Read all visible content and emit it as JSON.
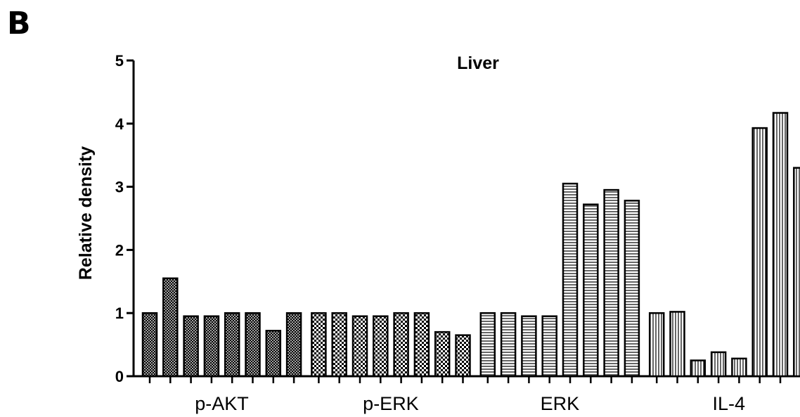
{
  "panel_label": "B",
  "chart_data": {
    "type": "bar",
    "title": "Liver",
    "xlabel": "",
    "ylabel": "Relative density",
    "ylim": [
      0,
      5
    ],
    "yticks": [
      0,
      1,
      2,
      3,
      4,
      5
    ],
    "grid": false,
    "legend": "none",
    "categories": [
      "p-AKT",
      "p-ERK",
      "ERK",
      "IL-4"
    ],
    "groups": [
      {
        "name": "p-AKT",
        "pattern": "crosshatch",
        "values": [
          1.0,
          1.55,
          0.95,
          0.95,
          1.0,
          1.0,
          0.72,
          1.0
        ]
      },
      {
        "name": "p-ERK",
        "pattern": "checker",
        "values": [
          1.0,
          1.0,
          0.95,
          0.95,
          1.0,
          1.0,
          0.7,
          0.65
        ]
      },
      {
        "name": "ERK",
        "pattern": "horizontal",
        "values": [
          1.0,
          1.0,
          0.95,
          0.95,
          3.05,
          2.72,
          2.95,
          2.78
        ]
      },
      {
        "name": "IL-4",
        "pattern": "vertical",
        "values": [
          1.0,
          1.02,
          0.25,
          0.38,
          0.28,
          3.93,
          4.17,
          3.3
        ]
      }
    ],
    "colors": {
      "stroke": "#000000",
      "fill": "#ffffff"
    }
  }
}
